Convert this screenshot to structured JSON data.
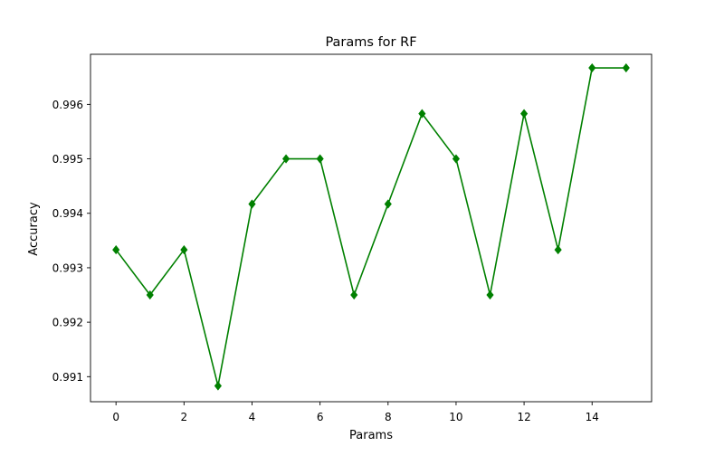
{
  "chart_data": {
    "type": "line",
    "title": "Params for RF",
    "xlabel": "Params",
    "ylabel": "Accuracy",
    "x": [
      0,
      1,
      2,
      3,
      4,
      5,
      6,
      7,
      8,
      9,
      10,
      11,
      12,
      13,
      14,
      15
    ],
    "series": [
      {
        "values": [
          0.99333,
          0.9925,
          0.99333,
          0.99083,
          0.99417,
          0.995,
          0.995,
          0.9925,
          0.99417,
          0.99583,
          0.995,
          0.9925,
          0.99583,
          0.99333,
          0.99667,
          0.99667
        ],
        "color": "#008000",
        "marker": "diamond"
      }
    ],
    "xlim": [
      -0.75,
      15.75
    ],
    "ylim": [
      0.99054,
      0.99692
    ],
    "xticks": [
      "0",
      "2",
      "4",
      "6",
      "8",
      "10",
      "12",
      "14"
    ],
    "yticks": [
      "0.991",
      "0.992",
      "0.993",
      "0.994",
      "0.995",
      "0.996"
    ],
    "grid": false,
    "legend": "none"
  }
}
